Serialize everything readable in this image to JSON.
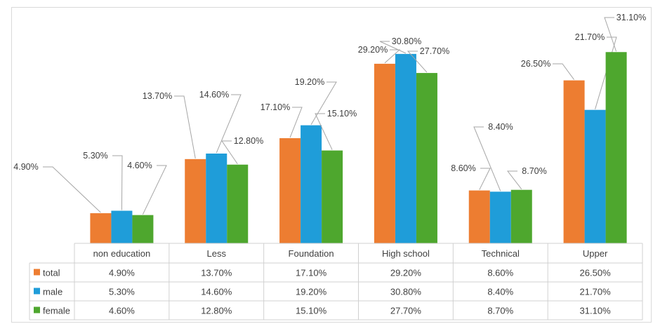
{
  "chart_data": {
    "type": "bar",
    "categories": [
      "non education",
      "Less",
      "Foundation",
      "High school",
      "Technical",
      "Upper"
    ],
    "series": [
      {
        "name": "total",
        "color": "#ED7D31",
        "values": [
          4.9,
          13.7,
          17.1,
          29.2,
          8.6,
          26.5
        ],
        "labels": [
          "4.90%",
          "13.70%",
          "17.10%",
          "29.20%",
          "8.60%",
          "26.50%"
        ]
      },
      {
        "name": "male",
        "color": "#1F9DD9",
        "values": [
          5.3,
          14.6,
          19.2,
          30.8,
          8.4,
          21.7
        ],
        "labels": [
          "5.30%",
          "14.60%",
          "19.20%",
          "30.80%",
          "8.40%",
          "21.70%"
        ]
      },
      {
        "name": "female",
        "color": "#4EA72E",
        "values": [
          4.6,
          12.8,
          15.1,
          27.7,
          8.7,
          31.1
        ],
        "labels": [
          "4.60%",
          "12.80%",
          "15.10%",
          "27.70%",
          "8.70%",
          "31.10%"
        ]
      }
    ],
    "data_table": true,
    "legend": "data-table"
  }
}
